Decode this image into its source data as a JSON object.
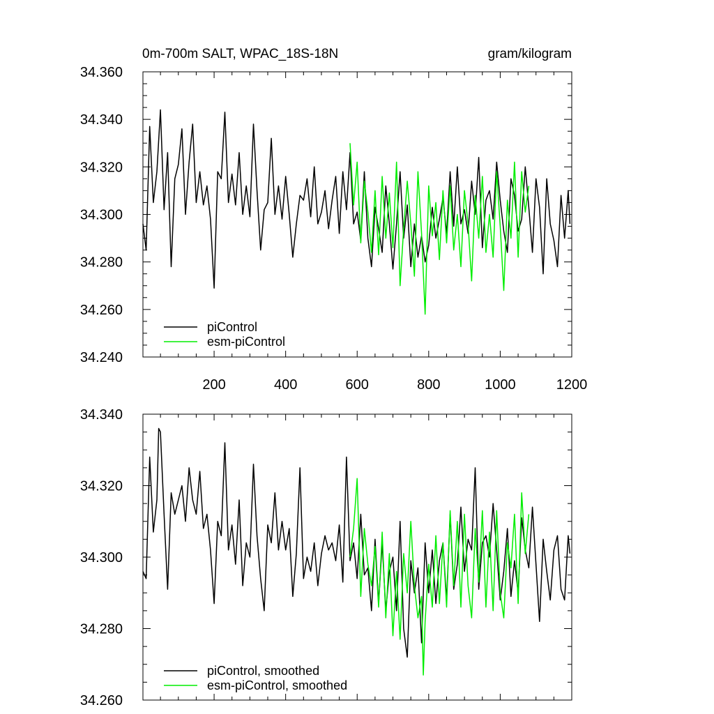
{
  "figure": {
    "title_left": "0m-700m SALT, WPAC_18S-18N",
    "title_right": "gram/kilogram"
  },
  "chart_data": [
    {
      "type": "line",
      "panel": "top",
      "title": "0m-700m SALT, WPAC_18S-18N",
      "units": "gram/kilogram",
      "xlim": [
        1,
        1200
      ],
      "ylim": [
        34.24,
        34.36
      ],
      "x_ticks": [
        200,
        400,
        600,
        800,
        1000,
        1200
      ],
      "x_tick_labels": [
        "200",
        "400",
        "600",
        "800",
        "1000",
        "1200"
      ],
      "y_ticks": [
        34.24,
        34.26,
        34.28,
        34.3,
        34.32,
        34.34,
        34.36
      ],
      "y_tick_labels": [
        "34.240",
        "34.260",
        "34.280",
        "34.300",
        "34.320",
        "34.340",
        "34.360"
      ],
      "legend_position": "bottom-left",
      "series": [
        {
          "name": "piControl",
          "color": "#000000",
          "x": [
            1,
            10,
            20,
            30,
            40,
            50,
            60,
            70,
            80,
            90,
            100,
            110,
            120,
            130,
            140,
            150,
            160,
            170,
            180,
            190,
            200,
            210,
            220,
            230,
            240,
            250,
            260,
            270,
            280,
            290,
            300,
            310,
            320,
            330,
            340,
            350,
            360,
            370,
            380,
            390,
            400,
            410,
            420,
            430,
            440,
            450,
            460,
            470,
            480,
            490,
            500,
            510,
            520,
            530,
            540,
            550,
            560,
            570,
            580,
            590,
            600,
            610,
            620,
            630,
            640,
            650,
            660,
            670,
            680,
            690,
            700,
            710,
            720,
            730,
            740,
            750,
            760,
            770,
            780,
            790,
            800,
            810,
            820,
            830,
            840,
            850,
            860,
            870,
            880,
            890,
            900,
            910,
            920,
            930,
            940,
            950,
            960,
            970,
            980,
            990,
            1000,
            1010,
            1020,
            1030,
            1040,
            1050,
            1060,
            1070,
            1080,
            1090,
            1100,
            1110,
            1120,
            1130,
            1140,
            1150,
            1160,
            1170,
            1180,
            1190,
            1195
          ],
          "y": [
            34.296,
            34.285,
            34.337,
            34.305,
            34.318,
            34.344,
            34.302,
            34.326,
            34.278,
            34.315,
            34.321,
            34.336,
            34.3,
            34.322,
            34.338,
            34.305,
            34.318,
            34.304,
            34.312,
            34.298,
            34.269,
            34.318,
            34.315,
            34.343,
            34.305,
            34.317,
            34.304,
            34.326,
            34.3,
            34.312,
            34.299,
            34.338,
            34.31,
            34.285,
            34.302,
            34.305,
            34.332,
            34.3,
            34.312,
            34.298,
            34.316,
            34.3,
            34.282,
            34.296,
            34.308,
            34.306,
            34.315,
            34.299,
            34.32,
            34.296,
            34.301,
            34.31,
            34.294,
            34.306,
            34.316,
            34.292,
            34.318,
            34.302,
            34.326,
            34.296,
            34.301,
            34.289,
            34.318,
            34.29,
            34.278,
            34.303,
            34.294,
            34.284,
            34.312,
            34.296,
            34.277,
            34.296,
            34.318,
            34.29,
            34.304,
            34.278,
            34.296,
            34.282,
            34.291,
            34.28,
            34.287,
            34.303,
            34.29,
            34.298,
            34.307,
            34.292,
            34.318,
            34.295,
            34.32,
            34.296,
            34.302,
            34.292,
            34.314,
            34.3,
            34.324,
            34.286,
            34.306,
            34.31,
            34.298,
            34.322,
            34.306,
            34.293,
            34.284,
            34.315,
            34.308,
            34.293,
            34.298,
            34.32,
            34.303,
            34.284,
            34.315,
            34.303,
            34.275,
            34.315,
            34.296,
            34.289,
            34.278,
            34.308,
            34.29,
            34.31,
            34.296
          ]
        },
        {
          "name": "esm-piControl",
          "color": "#00ee00",
          "x": [
            580,
            590,
            600,
            610,
            620,
            630,
            640,
            650,
            660,
            670,
            680,
            690,
            700,
            710,
            720,
            730,
            740,
            750,
            760,
            770,
            780,
            790,
            800,
            810,
            820,
            830,
            840,
            850,
            860,
            870,
            880,
            890,
            900,
            910,
            920,
            930,
            940,
            950,
            960,
            970,
            980,
            990,
            1000,
            1010,
            1020,
            1030,
            1040,
            1050,
            1060,
            1070,
            1080
          ],
          "y": [
            34.33,
            34.304,
            34.322,
            34.288,
            34.314,
            34.301,
            34.284,
            34.31,
            34.283,
            34.316,
            34.29,
            34.309,
            34.286,
            34.322,
            34.27,
            34.294,
            34.314,
            34.296,
            34.274,
            34.318,
            34.292,
            34.258,
            34.312,
            34.291,
            34.305,
            34.281,
            34.31,
            34.288,
            34.312,
            34.285,
            34.3,
            34.278,
            34.31,
            34.296,
            34.272,
            34.308,
            34.29,
            34.316,
            34.284,
            34.3,
            34.282,
            34.318,
            34.295,
            34.268,
            34.306,
            34.29,
            34.322,
            34.282,
            34.318,
            34.301,
            34.312
          ]
        }
      ]
    },
    {
      "type": "line",
      "panel": "bottom",
      "xlim": [
        1,
        1200
      ],
      "ylim": [
        34.26,
        34.34
      ],
      "x_ticks": [
        200,
        400,
        600,
        800,
        1000,
        1200
      ],
      "y_ticks": [
        34.26,
        34.28,
        34.3,
        34.32,
        34.34
      ],
      "y_tick_labels": [
        "34.260",
        "34.280",
        "34.300",
        "34.320",
        "34.340"
      ],
      "legend_position": "bottom-left",
      "series": [
        {
          "name": "piControl, smoothed",
          "color": "#000000",
          "x": [
            1,
            10,
            20,
            30,
            40,
            45,
            50,
            60,
            70,
            80,
            90,
            100,
            110,
            120,
            130,
            140,
            150,
            160,
            170,
            180,
            190,
            200,
            210,
            220,
            230,
            240,
            250,
            260,
            270,
            280,
            290,
            300,
            310,
            320,
            330,
            340,
            350,
            360,
            370,
            380,
            390,
            400,
            410,
            420,
            430,
            440,
            450,
            460,
            470,
            480,
            490,
            500,
            510,
            520,
            530,
            540,
            550,
            560,
            570,
            580,
            590,
            600,
            610,
            620,
            630,
            640,
            650,
            660,
            670,
            680,
            690,
            700,
            710,
            720,
            730,
            740,
            750,
            760,
            770,
            780,
            790,
            800,
            810,
            820,
            830,
            840,
            850,
            860,
            870,
            880,
            890,
            900,
            910,
            920,
            930,
            940,
            950,
            960,
            970,
            980,
            990,
            1000,
            1010,
            1020,
            1030,
            1040,
            1050,
            1060,
            1070,
            1080,
            1090,
            1100,
            1110,
            1120,
            1130,
            1140,
            1150,
            1160,
            1170,
            1180,
            1190,
            1195
          ],
          "y": [
            34.296,
            34.294,
            34.328,
            34.307,
            34.316,
            34.336,
            34.335,
            34.312,
            34.291,
            34.318,
            34.312,
            34.316,
            34.32,
            34.31,
            34.325,
            34.316,
            34.312,
            34.324,
            34.308,
            34.312,
            34.302,
            34.287,
            34.31,
            34.306,
            34.332,
            34.302,
            34.309,
            34.298,
            34.316,
            34.292,
            34.304,
            34.3,
            34.326,
            34.306,
            34.294,
            34.285,
            34.309,
            34.304,
            34.318,
            34.302,
            34.31,
            34.302,
            34.308,
            34.289,
            34.301,
            34.325,
            34.294,
            34.3,
            34.296,
            34.304,
            34.292,
            34.301,
            34.306,
            34.302,
            34.304,
            34.299,
            34.309,
            34.293,
            34.328,
            34.299,
            34.304,
            34.294,
            34.312,
            34.295,
            34.297,
            34.285,
            34.305,
            34.287,
            34.304,
            34.285,
            34.296,
            34.3,
            34.285,
            34.31,
            34.28,
            34.272,
            34.299,
            34.29,
            34.297,
            34.276,
            34.304,
            34.29,
            34.302,
            34.287,
            34.299,
            34.304,
            34.288,
            34.312,
            34.291,
            34.298,
            34.314,
            34.296,
            34.305,
            34.302,
            34.325,
            34.291,
            34.304,
            34.306,
            34.3,
            34.315,
            34.302,
            34.288,
            34.296,
            34.308,
            34.289,
            34.299,
            34.29,
            34.311,
            34.302,
            34.297,
            34.314,
            34.298,
            34.282,
            34.305,
            34.296,
            34.288,
            34.302,
            34.306,
            34.291,
            34.288,
            34.306,
            34.301
          ]
        },
        {
          "name": "esm-piControl, smoothed",
          "color": "#00ee00",
          "x": [
            580,
            590,
            600,
            610,
            620,
            630,
            640,
            650,
            660,
            670,
            680,
            690,
            700,
            710,
            720,
            730,
            740,
            750,
            760,
            770,
            780,
            785,
            790,
            800,
            810,
            820,
            830,
            840,
            850,
            860,
            870,
            880,
            890,
            900,
            910,
            920,
            930,
            940,
            950,
            960,
            970,
            980,
            990,
            1000,
            1010,
            1020,
            1030,
            1040,
            1050,
            1060,
            1070,
            1080
          ],
          "y": [
            34.3,
            34.308,
            34.322,
            34.289,
            34.308,
            34.298,
            34.292,
            34.303,
            34.286,
            34.307,
            34.283,
            34.301,
            34.278,
            34.296,
            34.277,
            34.301,
            34.29,
            34.31,
            34.292,
            34.283,
            34.289,
            34.267,
            34.282,
            34.298,
            34.286,
            34.306,
            34.287,
            34.304,
            34.286,
            34.313,
            34.292,
            34.31,
            34.286,
            34.312,
            34.292,
            34.283,
            34.308,
            34.293,
            34.313,
            34.286,
            34.307,
            34.285,
            34.313,
            34.29,
            34.283,
            34.304,
            34.297,
            34.312,
            34.287,
            34.318,
            34.301,
            34.312
          ]
        }
      ]
    }
  ]
}
